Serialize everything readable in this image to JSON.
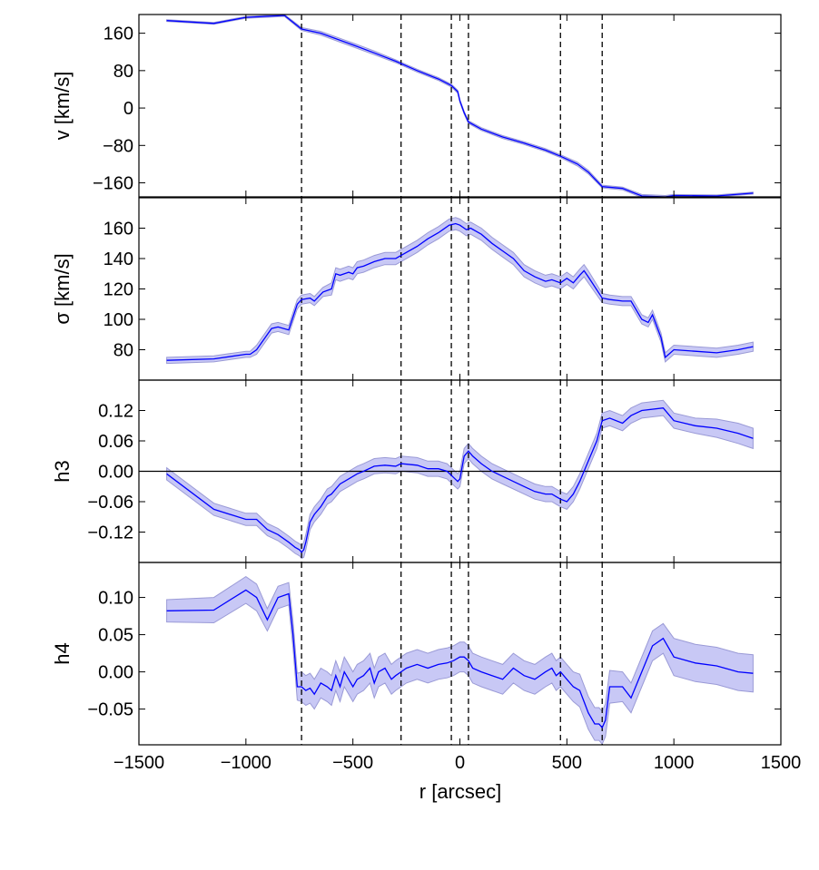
{
  "chart_data": {
    "type": "line",
    "shared_x": {
      "label": "r [arcsec]",
      "lim": [
        -1500,
        1500
      ],
      "ticks": [
        -1500,
        -1000,
        -500,
        0,
        500,
        1000,
        1500
      ],
      "tick_labels": [
        "−1500",
        "−1000",
        "−500",
        "0",
        "500",
        "1000",
        "1500"
      ]
    },
    "vertical_markers": [
      -740,
      -275,
      -40,
      40,
      470,
      665
    ],
    "colors": {
      "line": "#0000ff",
      "band": "#c8c8f5",
      "band_edge": "#9a9ad6",
      "frame": "#000000"
    },
    "panels": [
      {
        "id": "v",
        "ylabel": "v [km/s]",
        "ylim": [
          -190,
          200
        ],
        "yticks": [
          160,
          80,
          0,
          -80,
          -160
        ],
        "ytick_labels": [
          "160",
          "80",
          "0",
          "−80",
          "−160"
        ],
        "zero_line": false,
        "x": [
          -1370,
          -1150,
          -1000,
          -820,
          -740,
          -650,
          -500,
          -400,
          -300,
          -200,
          -100,
          -40,
          -10,
          0,
          20,
          40,
          100,
          200,
          300,
          400,
          470,
          550,
          600,
          665,
          760,
          850,
          960,
          1000,
          1200,
          1370
        ],
        "y": [
          187,
          181,
          194,
          198,
          169,
          160,
          135,
          118,
          100,
          80,
          62,
          48,
          35,
          15,
          -10,
          -30,
          -45,
          -62,
          -75,
          -90,
          -103,
          -120,
          -137,
          -168,
          -172,
          -188,
          -190,
          -187,
          -188,
          -182
        ],
        "err": [
          2,
          2,
          2,
          2,
          3,
          4,
          4,
          4,
          3,
          3,
          3,
          3,
          3,
          3,
          3,
          3,
          3,
          3,
          3,
          3,
          3,
          4,
          4,
          3,
          3,
          3,
          3,
          2,
          2,
          2
        ]
      },
      {
        "id": "sigma",
        "ylabel": "σ [km/s]",
        "ylim": [
          60,
          180
        ],
        "yticks": [
          80,
          100,
          120,
          140,
          160
        ],
        "ytick_labels": [
          "80",
          "100",
          "120",
          "140",
          "160"
        ],
        "zero_line": false,
        "x": [
          -1370,
          -1150,
          -1000,
          -980,
          -950,
          -900,
          -880,
          -850,
          -800,
          -760,
          -740,
          -700,
          -680,
          -640,
          -600,
          -580,
          -560,
          -520,
          -500,
          -480,
          -450,
          -400,
          -350,
          -300,
          -275,
          -200,
          -150,
          -100,
          -50,
          -20,
          0,
          30,
          50,
          100,
          150,
          200,
          250,
          300,
          350,
          400,
          430,
          470,
          500,
          530,
          560,
          580,
          600,
          665,
          700,
          760,
          800,
          850,
          880,
          900,
          940,
          960,
          1000,
          1100,
          1200,
          1300,
          1370
        ],
        "y": [
          73,
          74,
          77,
          77,
          80,
          90,
          94,
          95,
          93,
          110,
          113,
          114,
          112,
          118,
          120,
          130,
          129,
          131,
          130,
          134,
          135,
          138,
          140,
          140,
          142,
          148,
          153,
          157,
          162,
          163,
          162,
          159,
          160,
          156,
          150,
          145,
          140,
          132,
          128,
          125,
          126,
          124,
          127,
          124,
          129,
          132,
          128,
          114,
          113,
          112,
          112,
          100,
          98,
          103,
          88,
          75,
          80,
          79,
          78,
          80,
          82
        ],
        "err": [
          2,
          2,
          2,
          2,
          3,
          3,
          3,
          3,
          3,
          3,
          3,
          3,
          3,
          3,
          4,
          4,
          4,
          4,
          4,
          4,
          4,
          4,
          4,
          4,
          4,
          4,
          4,
          4,
          4,
          4,
          4,
          4,
          4,
          4,
          4,
          4,
          4,
          4,
          4,
          4,
          4,
          4,
          4,
          4,
          4,
          4,
          4,
          3,
          3,
          3,
          3,
          3,
          3,
          3,
          3,
          3,
          3,
          3,
          3,
          3,
          3
        ]
      },
      {
        "id": "h3",
        "ylabel": "h3",
        "ylim": [
          -0.18,
          0.18
        ],
        "yticks": [
          0.12,
          0.06,
          0.0,
          -0.06,
          -0.12
        ],
        "ytick_labels": [
          "0.12",
          "0.06",
          "0.00",
          "−0.06",
          "−0.12"
        ],
        "zero_line": true,
        "x": [
          -1370,
          -1150,
          -1000,
          -950,
          -900,
          -850,
          -800,
          -770,
          -750,
          -740,
          -730,
          -720,
          -700,
          -680,
          -650,
          -620,
          -600,
          -560,
          -520,
          -480,
          -450,
          -400,
          -350,
          -300,
          -275,
          -200,
          -150,
          -100,
          -60,
          -30,
          -10,
          0,
          20,
          40,
          60,
          100,
          150,
          200,
          250,
          300,
          350,
          400,
          430,
          450,
          470,
          500,
          530,
          560,
          600,
          640,
          665,
          700,
          760,
          800,
          850,
          950,
          1000,
          1100,
          1200,
          1300,
          1370
        ],
        "y": [
          -0.005,
          -0.075,
          -0.095,
          -0.095,
          -0.115,
          -0.125,
          -0.14,
          -0.15,
          -0.155,
          -0.16,
          -0.155,
          -0.14,
          -0.1,
          -0.085,
          -0.07,
          -0.05,
          -0.045,
          -0.025,
          -0.015,
          -0.005,
          0.0,
          0.01,
          0.012,
          0.01,
          0.015,
          0.012,
          0.005,
          0.005,
          0.0,
          -0.012,
          -0.02,
          -0.015,
          0.03,
          0.04,
          0.03,
          0.015,
          0.0,
          -0.01,
          -0.02,
          -0.03,
          -0.04,
          -0.045,
          -0.045,
          -0.05,
          -0.055,
          -0.06,
          -0.045,
          -0.02,
          0.02,
          0.06,
          0.1,
          0.105,
          0.095,
          0.11,
          0.12,
          0.125,
          0.1,
          0.09,
          0.085,
          0.075,
          0.065
        ],
        "err": [
          0.012,
          0.012,
          0.012,
          0.012,
          0.012,
          0.012,
          0.012,
          0.012,
          0.012,
          0.012,
          0.015,
          0.015,
          0.015,
          0.015,
          0.015,
          0.015,
          0.015,
          0.015,
          0.015,
          0.015,
          0.015,
          0.015,
          0.015,
          0.015,
          0.015,
          0.015,
          0.015,
          0.015,
          0.015,
          0.015,
          0.015,
          0.015,
          0.015,
          0.015,
          0.015,
          0.015,
          0.015,
          0.015,
          0.015,
          0.015,
          0.015,
          0.015,
          0.015,
          0.015,
          0.015,
          0.015,
          0.015,
          0.015,
          0.015,
          0.015,
          0.015,
          0.015,
          0.015,
          0.015,
          0.015,
          0.015,
          0.015,
          0.015,
          0.018,
          0.02,
          0.02
        ]
      },
      {
        "id": "h4",
        "ylabel": "h4",
        "ylim": [
          -0.098,
          0.147
        ],
        "yticks": [
          0.1,
          0.05,
          0.0,
          -0.05
        ],
        "ytick_labels": [
          "0.10",
          "0.05",
          "0.00",
          "−0.05"
        ],
        "zero_line": false,
        "x": [
          -1370,
          -1150,
          -1000,
          -950,
          -900,
          -850,
          -800,
          -780,
          -760,
          -740,
          -720,
          -700,
          -680,
          -650,
          -620,
          -600,
          -580,
          -560,
          -540,
          -520,
          -500,
          -480,
          -450,
          -420,
          -400,
          -380,
          -350,
          -320,
          -300,
          -275,
          -250,
          -200,
          -150,
          -100,
          -60,
          -30,
          0,
          20,
          40,
          60,
          100,
          150,
          200,
          250,
          300,
          350,
          400,
          430,
          450,
          470,
          500,
          530,
          560,
          580,
          600,
          630,
          650,
          665,
          680,
          700,
          760,
          800,
          850,
          900,
          950,
          1000,
          1100,
          1200,
          1300,
          1370
        ],
        "y": [
          0.082,
          0.083,
          0.11,
          0.1,
          0.07,
          0.1,
          0.105,
          0.05,
          -0.02,
          -0.02,
          -0.025,
          -0.022,
          -0.03,
          -0.015,
          -0.02,
          -0.025,
          -0.005,
          -0.02,
          0.0,
          -0.01,
          -0.02,
          -0.01,
          -0.005,
          0.005,
          -0.015,
          0.0,
          0.005,
          -0.01,
          -0.005,
          0.0,
          0.005,
          0.01,
          0.005,
          0.01,
          0.012,
          0.015,
          0.02,
          0.02,
          0.015,
          0.005,
          0.0,
          -0.005,
          -0.01,
          0.005,
          -0.005,
          -0.01,
          0.0,
          0.005,
          -0.005,
          0.0,
          -0.01,
          -0.02,
          -0.025,
          -0.04,
          -0.055,
          -0.07,
          -0.07,
          -0.075,
          -0.065,
          -0.02,
          -0.02,
          -0.035,
          0.0,
          0.035,
          0.045,
          0.02,
          0.012,
          0.008,
          0.0,
          -0.002
        ],
        "err": [
          0.015,
          0.017,
          0.018,
          0.018,
          0.015,
          0.015,
          0.015,
          0.018,
          0.018,
          0.02,
          0.02,
          0.02,
          0.02,
          0.02,
          0.02,
          0.02,
          0.02,
          0.02,
          0.02,
          0.02,
          0.02,
          0.02,
          0.02,
          0.02,
          0.02,
          0.02,
          0.02,
          0.02,
          0.02,
          0.02,
          0.02,
          0.02,
          0.02,
          0.02,
          0.02,
          0.02,
          0.02,
          0.02,
          0.02,
          0.02,
          0.02,
          0.02,
          0.02,
          0.02,
          0.02,
          0.02,
          0.02,
          0.02,
          0.02,
          0.02,
          0.02,
          0.02,
          0.022,
          0.022,
          0.022,
          0.022,
          0.022,
          0.022,
          0.022,
          0.022,
          0.02,
          0.02,
          0.02,
          0.02,
          0.02,
          0.025,
          0.025,
          0.025,
          0.025,
          0.025
        ]
      }
    ]
  }
}
